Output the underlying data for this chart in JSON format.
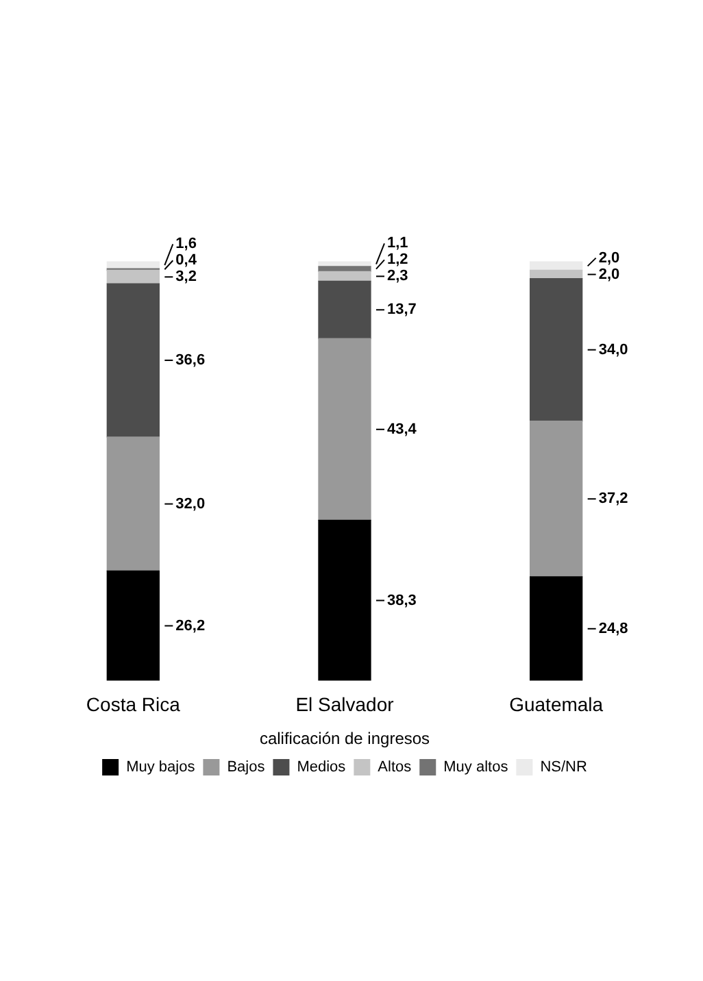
{
  "chart_data": {
    "type": "bar",
    "stacked": true,
    "legend": "bottom",
    "legend_title": "calificación de ingresos",
    "grid": false,
    "categories": [
      "Costa Rica",
      "El Salvador",
      "Guatemala"
    ],
    "series": [
      {
        "name": "Muy bajos",
        "color": "#000000",
        "values": [
          26.2,
          38.3,
          24.8
        ],
        "value_labels": [
          "26,2",
          "38,3",
          "24,8"
        ]
      },
      {
        "name": "Bajos",
        "color": "#999999",
        "values": [
          32.0,
          43.4,
          37.2
        ],
        "value_labels": [
          "32,0",
          "43,4",
          "37,2"
        ]
      },
      {
        "name": "Medios",
        "color": "#4d4d4d",
        "values": [
          36.6,
          13.7,
          34.0
        ],
        "value_labels": [
          "36,6",
          "13,7",
          "34,0"
        ]
      },
      {
        "name": "Altos",
        "color": "#c4c4c4",
        "values": [
          3.2,
          2.3,
          2.0
        ],
        "value_labels": [
          "3,2",
          "2,3",
          "2,0"
        ]
      },
      {
        "name": "Muy altos",
        "color": "#737373",
        "values": [
          0.4,
          1.2,
          null
        ],
        "value_labels": [
          "0,4",
          "1,2",
          null
        ]
      },
      {
        "name": "NS/NR",
        "color": "#ebebeb",
        "values": [
          1.6,
          1.1,
          2.0
        ],
        "value_labels": [
          "1,6",
          "1,1",
          "2,0"
        ]
      }
    ]
  }
}
